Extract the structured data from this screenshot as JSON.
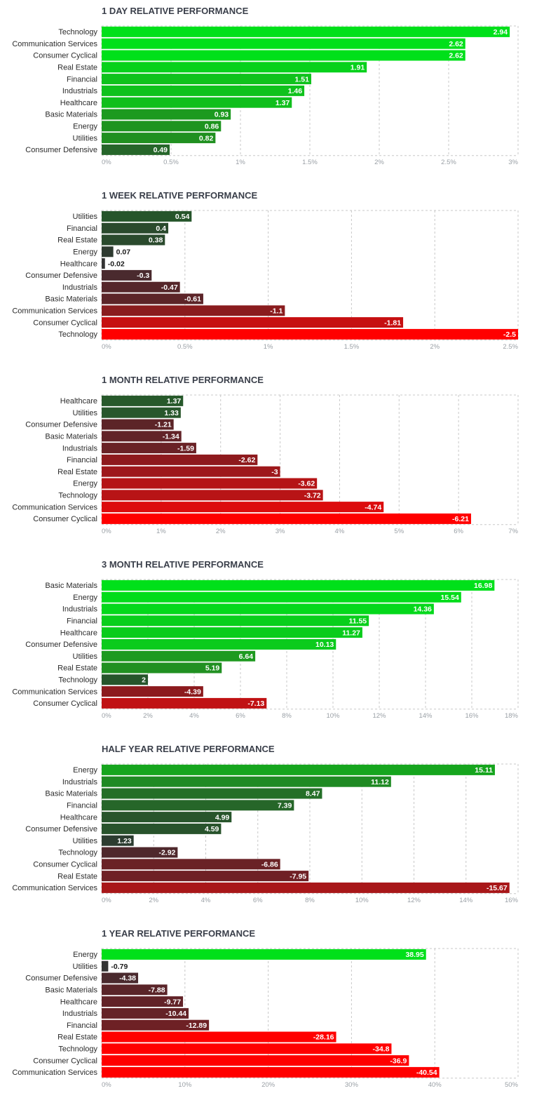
{
  "chart_data": [
    {
      "type": "bar",
      "title": "1 DAY RELATIVE PERFORMANCE",
      "categories": [
        "Technology",
        "Communication Services",
        "Consumer Cyclical",
        "Real Estate",
        "Financial",
        "Industrials",
        "Healthcare",
        "Basic Materials",
        "Energy",
        "Utilities",
        "Consumer Defensive"
      ],
      "values": [
        2.94,
        2.62,
        2.62,
        1.91,
        1.51,
        1.46,
        1.37,
        0.93,
        0.86,
        0.82,
        0.49
      ],
      "value_labels": [
        "2.94",
        "2.62",
        "2.62",
        "1.91",
        "1.51",
        "1.46",
        "1.37",
        "0.93",
        "0.86",
        "0.82",
        "0.49"
      ],
      "bar_colors": [
        "#00e01a",
        "#00e01a",
        "#00e01a",
        "#07d11b",
        "#0fc21c",
        "#0fc21c",
        "#10bf1c",
        "#1c9a1f",
        "#1e941f",
        "#209020",
        "#26662a"
      ],
      "xlim": [
        0,
        3
      ],
      "ticks": [
        "0%",
        "0.5%",
        "1%",
        "1.5%",
        "2%",
        "2.5%",
        "3%"
      ]
    },
    {
      "type": "bar",
      "title": "1 WEEK RELATIVE PERFORMANCE",
      "categories": [
        "Utilities",
        "Financial",
        "Real Estate",
        "Energy",
        "Healthcare",
        "Consumer Defensive",
        "Industrials",
        "Basic Materials",
        "Communication Services",
        "Consumer Cyclical",
        "Technology"
      ],
      "values": [
        0.54,
        0.4,
        0.38,
        0.07,
        -0.02,
        -0.3,
        -0.47,
        -0.61,
        -1.1,
        -1.81,
        -2.5
      ],
      "value_labels": [
        "0.54",
        "0.4",
        "0.38",
        "0.07",
        "-0.02",
        "-0.3",
        "-0.47",
        "-0.61",
        "-1.1",
        "-1.81",
        "-2.5"
      ],
      "bar_colors": [
        "#26552b",
        "#2a4a2d",
        "#2a4a2d",
        "#2e3a30",
        "#333333",
        "#4a2a2e",
        "#55262a",
        "#5c2428",
        "#8a1c1e",
        "#c60f11",
        "#ff0000"
      ],
      "xlim": [
        0,
        2.5
      ],
      "ticks": [
        "0%",
        "0.5%",
        "1%",
        "1.5%",
        "2%",
        "2.5%"
      ]
    },
    {
      "type": "bar",
      "title": "1 MONTH RELATIVE PERFORMANCE",
      "categories": [
        "Healthcare",
        "Utilities",
        "Consumer Defensive",
        "Basic Materials",
        "Industrials",
        "Financial",
        "Real Estate",
        "Energy",
        "Technology",
        "Communication Services",
        "Consumer Cyclical"
      ],
      "values": [
        1.37,
        1.33,
        -1.21,
        -1.34,
        -1.59,
        -2.62,
        -3,
        -3.62,
        -3.72,
        -4.74,
        -6.21
      ],
      "value_labels": [
        "1.37",
        "1.33",
        "-1.21",
        "-1.34",
        "-1.59",
        "-2.62",
        "-3",
        "-3.62",
        "-3.72",
        "-4.74",
        "-6.21"
      ],
      "bar_colors": [
        "#27592b",
        "#28572c",
        "#5c2427",
        "#622328",
        "#6a2226",
        "#8e1a1d",
        "#9e181b",
        "#b51416",
        "#b81416",
        "#dc0c0d",
        "#ff0000"
      ],
      "xlim": [
        0,
        7
      ],
      "ticks": [
        "0%",
        "1%",
        "2%",
        "3%",
        "4%",
        "5%",
        "6%",
        "7%"
      ]
    },
    {
      "type": "bar",
      "title": "3 MONTH RELATIVE PERFORMANCE",
      "categories": [
        "Basic Materials",
        "Energy",
        "Industrials",
        "Financial",
        "Healthcare",
        "Consumer Defensive",
        "Utilities",
        "Real Estate",
        "Technology",
        "Communication Services",
        "Consumer Cyclical"
      ],
      "values": [
        16.98,
        15.54,
        14.36,
        11.55,
        11.27,
        10.13,
        6.64,
        5.19,
        2,
        -4.39,
        -7.13
      ],
      "value_labels": [
        "16.98",
        "15.54",
        "14.36",
        "11.55",
        "11.27",
        "10.13",
        "6.64",
        "5.19",
        "2",
        "-4.39",
        "-7.13"
      ],
      "bar_colors": [
        "#00e01a",
        "#02dc1a",
        "#04d81b",
        "#09cf1b",
        "#0acc1b",
        "#0bcb1c",
        "#1e9a20",
        "#219022",
        "#26552b",
        "#8c1b1e",
        "#c01214"
      ],
      "xlim": [
        0,
        18
      ],
      "ticks": [
        "0%",
        "2%",
        "4%",
        "6%",
        "8%",
        "10%",
        "12%",
        "14%",
        "16%",
        "18%"
      ]
    },
    {
      "type": "bar",
      "title": "HALF YEAR RELATIVE PERFORMANCE",
      "categories": [
        "Energy",
        "Industrials",
        "Basic Materials",
        "Financial",
        "Healthcare",
        "Consumer Defensive",
        "Utilities",
        "Technology",
        "Consumer Cyclical",
        "Real Estate",
        "Communication Services"
      ],
      "values": [
        15.11,
        11.12,
        8.47,
        7.39,
        4.99,
        4.59,
        1.23,
        -2.92,
        -6.86,
        -7.95,
        -15.67
      ],
      "value_labels": [
        "15.11",
        "11.12",
        "8.47",
        "7.39",
        "4.99",
        "4.59",
        "1.23",
        "-2.92",
        "-6.86",
        "-7.95",
        "-15.67"
      ],
      "bar_colors": [
        "#16a51e",
        "#1f8a23",
        "#246f27",
        "#266629",
        "#28552c",
        "#28532c",
        "#2c3c30",
        "#4f282c",
        "#6a2226",
        "#6f2125",
        "#a81719"
      ],
      "xlim": [
        0,
        16
      ],
      "ticks": [
        "0%",
        "2%",
        "4%",
        "6%",
        "8%",
        "10%",
        "12%",
        "14%",
        "16%"
      ]
    },
    {
      "type": "bar",
      "title": "1 YEAR RELATIVE PERFORMANCE",
      "categories": [
        "Energy",
        "Utilities",
        "Consumer Defensive",
        "Basic Materials",
        "Healthcare",
        "Industrials",
        "Financial",
        "Real Estate",
        "Technology",
        "Consumer Cyclical",
        "Communication Services"
      ],
      "values": [
        38.95,
        -0.79,
        -4.38,
        -7.88,
        -9.77,
        -10.44,
        -12.89,
        -28.16,
        -34.8,
        -36.9,
        -40.54
      ],
      "value_labels": [
        "38.95",
        "-0.79",
        "-4.38",
        "-7.88",
        "-9.77",
        "-10.44",
        "-12.89",
        "-28.16",
        "-34.8",
        "-36.9",
        "-40.54"
      ],
      "bar_colors": [
        "#00e01a",
        "#333333",
        "#4a2a2e",
        "#5a2529",
        "#622328",
        "#652327",
        "#6e2125",
        "#ff0000",
        "#ff0000",
        "#ff0000",
        "#ff0000"
      ],
      "xlim": [
        0,
        50
      ],
      "ticks": [
        "0%",
        "10%",
        "20%",
        "30%",
        "40%",
        "50%"
      ]
    }
  ]
}
